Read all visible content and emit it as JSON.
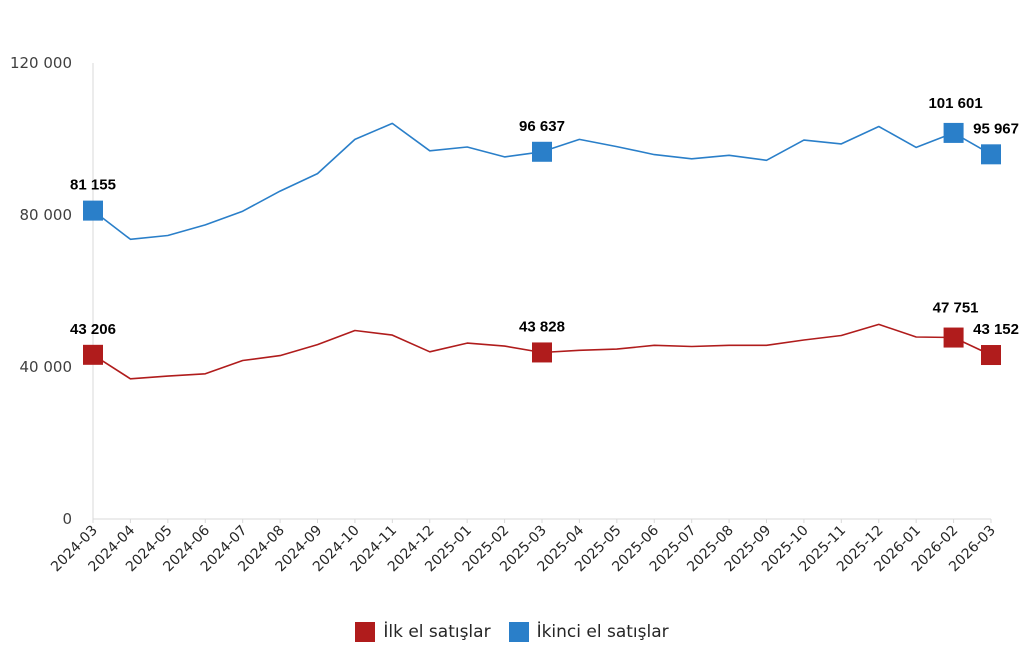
{
  "chart_data": {
    "type": "line",
    "categories": [
      "2024-03",
      "2024-04",
      "2024-05",
      "2024-06",
      "2024-07",
      "2024-08",
      "2024-09",
      "2024-10",
      "2024-11",
      "2024-12",
      "2025-01",
      "2025-02",
      "2025-03",
      "2025-04",
      "2025-05",
      "2025-06",
      "2025-07",
      "2025-08",
      "2025-09",
      "2025-10",
      "2025-11",
      "2025-12",
      "2026-01",
      "2026-02",
      "2026-03"
    ],
    "ylim": [
      0,
      120000
    ],
    "yticks": [
      0,
      40000,
      80000,
      120000
    ],
    "ytick_labels": [
      "0",
      "40 000",
      "80 000",
      "120 000"
    ],
    "grid": false,
    "legend_position": "bottom",
    "series": [
      {
        "name": "İlk el satışlar",
        "color": "#b01c1c",
        "values": [
          43206,
          36900,
          37600,
          38200,
          41700,
          43000,
          45900,
          49600,
          48400,
          44000,
          46300,
          45500,
          43828,
          44400,
          44700,
          45700,
          45400,
          45700,
          45700,
          47100,
          48300,
          51200,
          47900,
          47751,
          43152
        ],
        "labels": [
          {
            "index": 0,
            "text": "43 206"
          },
          {
            "index": 12,
            "text": "43 828"
          },
          {
            "index": 23,
            "text": "47 751"
          },
          {
            "index": 24,
            "text": "43 152"
          }
        ]
      },
      {
        "name": "İkinci el satışlar",
        "color": "#2a7fc9",
        "values": [
          81155,
          73600,
          74600,
          77400,
          81000,
          86300,
          90900,
          99900,
          104100,
          96900,
          97900,
          95300,
          96637,
          99900,
          98000,
          95900,
          94800,
          95700,
          94400,
          99700,
          98700,
          103300,
          97800,
          101601,
          95967
        ],
        "labels": [
          {
            "index": 0,
            "text": "81 155"
          },
          {
            "index": 12,
            "text": "96 637"
          },
          {
            "index": 23,
            "text": "101 601"
          },
          {
            "index": 24,
            "text": "95 967"
          }
        ]
      }
    ]
  }
}
